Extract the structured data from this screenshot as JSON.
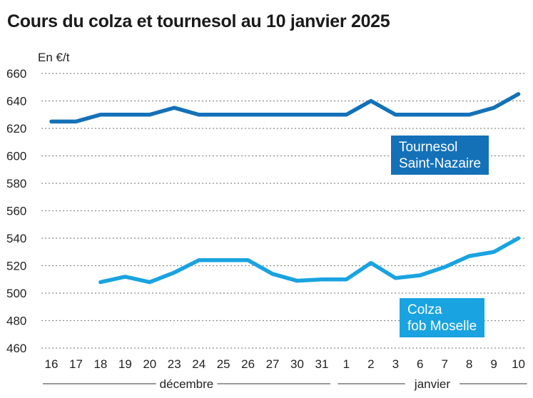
{
  "chart_data": {
    "type": "line",
    "title": "Cours du colza et tournesol au 10 janvier 2025",
    "unit_label": "En €/t",
    "ylim": [
      460,
      660
    ],
    "yticks": [
      460,
      480,
      500,
      520,
      540,
      560,
      580,
      600,
      620,
      640,
      660
    ],
    "grid": true,
    "categories": [
      "16",
      "17",
      "18",
      "19",
      "20",
      "23",
      "24",
      "25",
      "26",
      "27",
      "30",
      "31",
      "1",
      "2",
      "3",
      "6",
      "7",
      "8",
      "9",
      "10"
    ],
    "groups": [
      {
        "label": "décembre",
        "from": 0,
        "to": 11
      },
      {
        "label": "janvier",
        "from": 12,
        "to": 19
      }
    ],
    "series": [
      {
        "name_lines": [
          "Tournesol",
          "Saint-Nazaire"
        ],
        "color": "#1471b8",
        "values": [
          625,
          625,
          630,
          630,
          630,
          635,
          630,
          630,
          630,
          630,
          630,
          630,
          630,
          640,
          630,
          630,
          630,
          630,
          635,
          645
        ]
      },
      {
        "name_lines": [
          "Colza",
          "fob Moselle"
        ],
        "color": "#19a3e0",
        "values": [
          null,
          null,
          508,
          512,
          508,
          515,
          524,
          524,
          524,
          514,
          509,
          510,
          510,
          522,
          511,
          513,
          519,
          527,
          530,
          540
        ]
      }
    ]
  }
}
